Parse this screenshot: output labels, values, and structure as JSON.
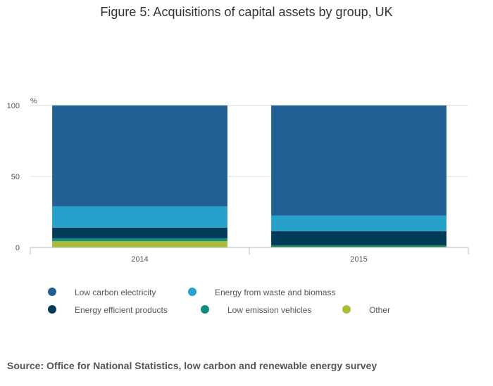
{
  "chart_data": {
    "type": "bar",
    "stacked": true,
    "title": "Figure 5: Acquisitions of capital assets by group, UK",
    "ylabel": "%",
    "xlabel": "",
    "ylim": [
      0,
      100
    ],
    "yticks": [
      0,
      50,
      100
    ],
    "categories": [
      "2014",
      "2015"
    ],
    "series": [
      {
        "name": "Other",
        "color": "#a8bd3a",
        "values": [
          4.5,
          0.5
        ]
      },
      {
        "name": "Low emission vehicles",
        "color": "#0f8c79",
        "values": [
          2,
          1
        ]
      },
      {
        "name": "Energy efficient products",
        "color": "#003c57",
        "values": [
          7.5,
          10
        ]
      },
      {
        "name": "Energy from waste and biomass",
        "color": "#27a0cc",
        "values": [
          15,
          11
        ]
      },
      {
        "name": "Low carbon electricity",
        "color": "#206095",
        "values": [
          71,
          77.5
        ]
      }
    ],
    "legend": {
      "placement": "bottom",
      "order": [
        "Low carbon electricity",
        "Energy from waste and biomass",
        "Energy efficient products",
        "Low emission vehicles",
        "Other"
      ]
    }
  },
  "source": "Source: Office for National Statistics, low carbon and renewable energy survey"
}
